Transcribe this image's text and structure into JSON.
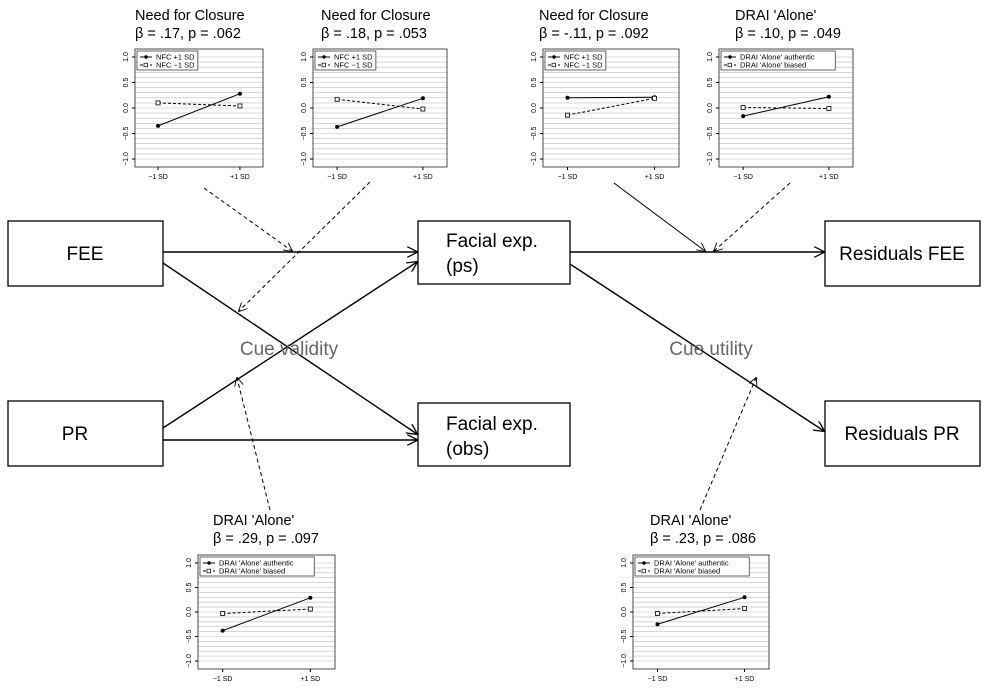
{
  "nodes": [
    {
      "id": "fee",
      "lines": [
        "FEE"
      ]
    },
    {
      "id": "pr",
      "lines": [
        "PR"
      ]
    },
    {
      "id": "facial-ps",
      "lines": [
        "Facial exp.",
        "(ps)"
      ]
    },
    {
      "id": "facial-obs",
      "lines": [
        "Facial exp.",
        "(obs)"
      ]
    },
    {
      "id": "residuals-fee",
      "lines": [
        "Residuals FEE"
      ]
    },
    {
      "id": "residuals-pr",
      "lines": [
        "Residuals PR"
      ]
    }
  ],
  "cue_labels": {
    "validity": "Cue validity",
    "utility": "Cue utility"
  },
  "chart_data": [
    {
      "type": "line",
      "title": "Need for Closure",
      "subtitle": "β = .17, p = .062",
      "categories": [
        "−1 SD",
        "+1 SD"
      ],
      "ylim": [
        -1.0,
        1.0
      ],
      "yticks": [
        "−1.0",
        "−0.5",
        "0.0",
        "0.5",
        "1.0"
      ],
      "grid": true,
      "legend_placement": "top-left",
      "series": [
        {
          "name": "NFC +1 SD",
          "style": "solid",
          "values": [
            -0.35,
            0.28
          ]
        },
        {
          "name": "NFC −1 SD",
          "style": "dashed",
          "values": [
            0.1,
            0.04
          ]
        }
      ]
    },
    {
      "type": "line",
      "title": "Need for Closure",
      "subtitle": "β = .18, p = .053",
      "categories": [
        "−1 SD",
        "+1 SD"
      ],
      "ylim": [
        -1.0,
        1.0
      ],
      "yticks": [
        "−1.0",
        "−0.5",
        "0.0",
        "0.5",
        "1.0"
      ],
      "grid": true,
      "legend_placement": "top-left",
      "series": [
        {
          "name": "NFC +1 SD",
          "style": "solid",
          "values": [
            -0.37,
            0.19
          ]
        },
        {
          "name": "NFC −1 SD",
          "style": "dashed",
          "values": [
            0.17,
            -0.02
          ]
        }
      ]
    },
    {
      "type": "line",
      "title": "Need for Closure",
      "subtitle": "β = -.11, p = .092",
      "categories": [
        "−1 SD",
        "+1 SD"
      ],
      "ylim": [
        -1.0,
        1.0
      ],
      "yticks": [
        "−1.0",
        "−0.5",
        "0.0",
        "0.5",
        "1.0"
      ],
      "grid": true,
      "legend_placement": "top-left",
      "series": [
        {
          "name": "NFC +1 SD",
          "style": "solid",
          "values": [
            0.2,
            0.21
          ]
        },
        {
          "name": "NFC −1 SD",
          "style": "dashed",
          "values": [
            -0.14,
            0.19
          ]
        }
      ]
    },
    {
      "type": "line",
      "title": "DRAI 'Alone'",
      "subtitle": "β = .10, p = .049",
      "categories": [
        "−1 SD",
        "+1 SD"
      ],
      "ylim": [
        -1.0,
        1.0
      ],
      "yticks": [
        "−1.0",
        "−0.5",
        "0.0",
        "0.5",
        "1.0"
      ],
      "grid": true,
      "legend_placement": "top-left",
      "series": [
        {
          "name": "DRAI 'Alone' authentic",
          "style": "solid",
          "values": [
            -0.16,
            0.22
          ]
        },
        {
          "name": "DRAI 'Alone' biased",
          "style": "dashed",
          "values": [
            0.01,
            -0.01
          ]
        }
      ]
    },
    {
      "type": "line",
      "title": "DRAI 'Alone'",
      "subtitle": "β = .29, p = .097",
      "categories": [
        "−1 SD",
        "+1 SD"
      ],
      "ylim": [
        -1.0,
        1.0
      ],
      "yticks": [
        "−1.0",
        "−0.5",
        "0.0",
        "0.5",
        "1.0"
      ],
      "grid": true,
      "legend_placement": "top-left",
      "series": [
        {
          "name": "DRAI 'Alone' authentic",
          "style": "solid",
          "values": [
            -0.38,
            0.29
          ]
        },
        {
          "name": "DRAI 'Alone' biased",
          "style": "dashed",
          "values": [
            -0.03,
            0.06
          ]
        }
      ]
    },
    {
      "type": "line",
      "title": "DRAI 'Alone'",
      "subtitle": "β = .23, p = .086",
      "categories": [
        "−1 SD",
        "+1 SD"
      ],
      "ylim": [
        -1.0,
        1.0
      ],
      "yticks": [
        "−1.0",
        "−0.5",
        "0.0",
        "0.5",
        "1.0"
      ],
      "grid": true,
      "legend_placement": "top-left",
      "series": [
        {
          "name": "DRAI 'Alone' authentic",
          "style": "solid",
          "values": [
            -0.25,
            0.3
          ]
        },
        {
          "name": "DRAI 'Alone' biased",
          "style": "dashed",
          "values": [
            -0.03,
            0.07
          ]
        }
      ]
    }
  ]
}
